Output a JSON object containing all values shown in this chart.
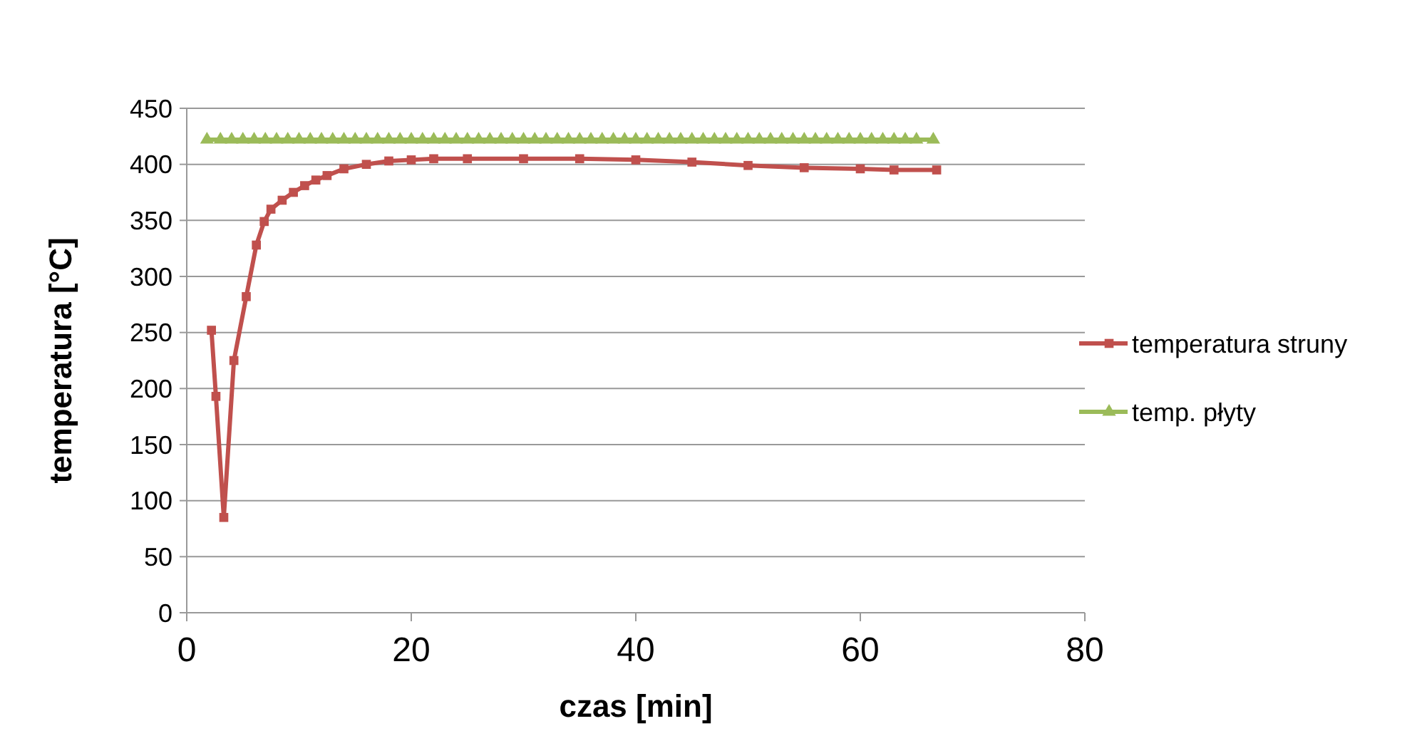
{
  "chart_data": {
    "type": "line",
    "xlabel": "czas [min]",
    "ylabel": "temperatura [°C]",
    "xlim": [
      0,
      80
    ],
    "xticks": [
      0,
      20,
      40,
      60,
      80
    ],
    "ylim": [
      0,
      450
    ],
    "yticks": [
      0,
      50,
      100,
      150,
      200,
      250,
      300,
      350,
      400,
      450
    ],
    "grid": "y",
    "legend": "right",
    "line_style": "solid",
    "series": [
      {
        "name": "temperatura struny",
        "color": "#c0504d",
        "marker": "square",
        "x": [
          2.2,
          2.6,
          3.3,
          4.2,
          5.3,
          6.2,
          6.9,
          7.5,
          8.5,
          9.5,
          10.5,
          11.5,
          12.5,
          14,
          16,
          18,
          20,
          22,
          25,
          30,
          35,
          40,
          45,
          50,
          55,
          60,
          63,
          66.8
        ],
        "values": [
          252,
          193,
          85,
          225,
          282,
          328,
          349,
          360,
          368,
          375,
          381,
          386,
          390,
          396,
          400,
          403,
          404,
          405,
          405,
          405,
          405,
          404,
          402,
          399,
          397,
          396,
          395,
          395
        ]
      },
      {
        "name": "temp. płyty",
        "color": "#9bbb59",
        "marker": "triangle",
        "x": [
          1.8,
          3,
          4,
          5,
          6,
          7,
          8,
          9,
          10,
          11,
          12,
          13,
          14,
          15,
          16,
          17,
          18,
          19,
          20,
          21,
          22,
          23,
          24,
          25,
          26,
          27,
          28,
          29,
          30,
          31,
          32,
          33,
          34,
          35,
          36,
          37,
          38,
          39,
          40,
          41,
          42,
          43,
          44,
          45,
          46,
          47,
          48,
          49,
          50,
          51,
          52,
          53,
          54,
          55,
          56,
          57,
          58,
          59,
          60,
          61,
          62,
          63,
          64,
          65,
          66.5
        ],
        "values": [
          422,
          422,
          422,
          422,
          422,
          422,
          422,
          422,
          422,
          422,
          422,
          422,
          422,
          422,
          422,
          422,
          422,
          422,
          422,
          422,
          422,
          422,
          422,
          422,
          422,
          422,
          422,
          422,
          422,
          422,
          422,
          422,
          422,
          422,
          422,
          422,
          422,
          422,
          422,
          422,
          422,
          422,
          422,
          422,
          422,
          422,
          422,
          422,
          422,
          422,
          422,
          422,
          422,
          422,
          422,
          422,
          422,
          422,
          422,
          422,
          422,
          422,
          422,
          422,
          422
        ]
      }
    ]
  }
}
